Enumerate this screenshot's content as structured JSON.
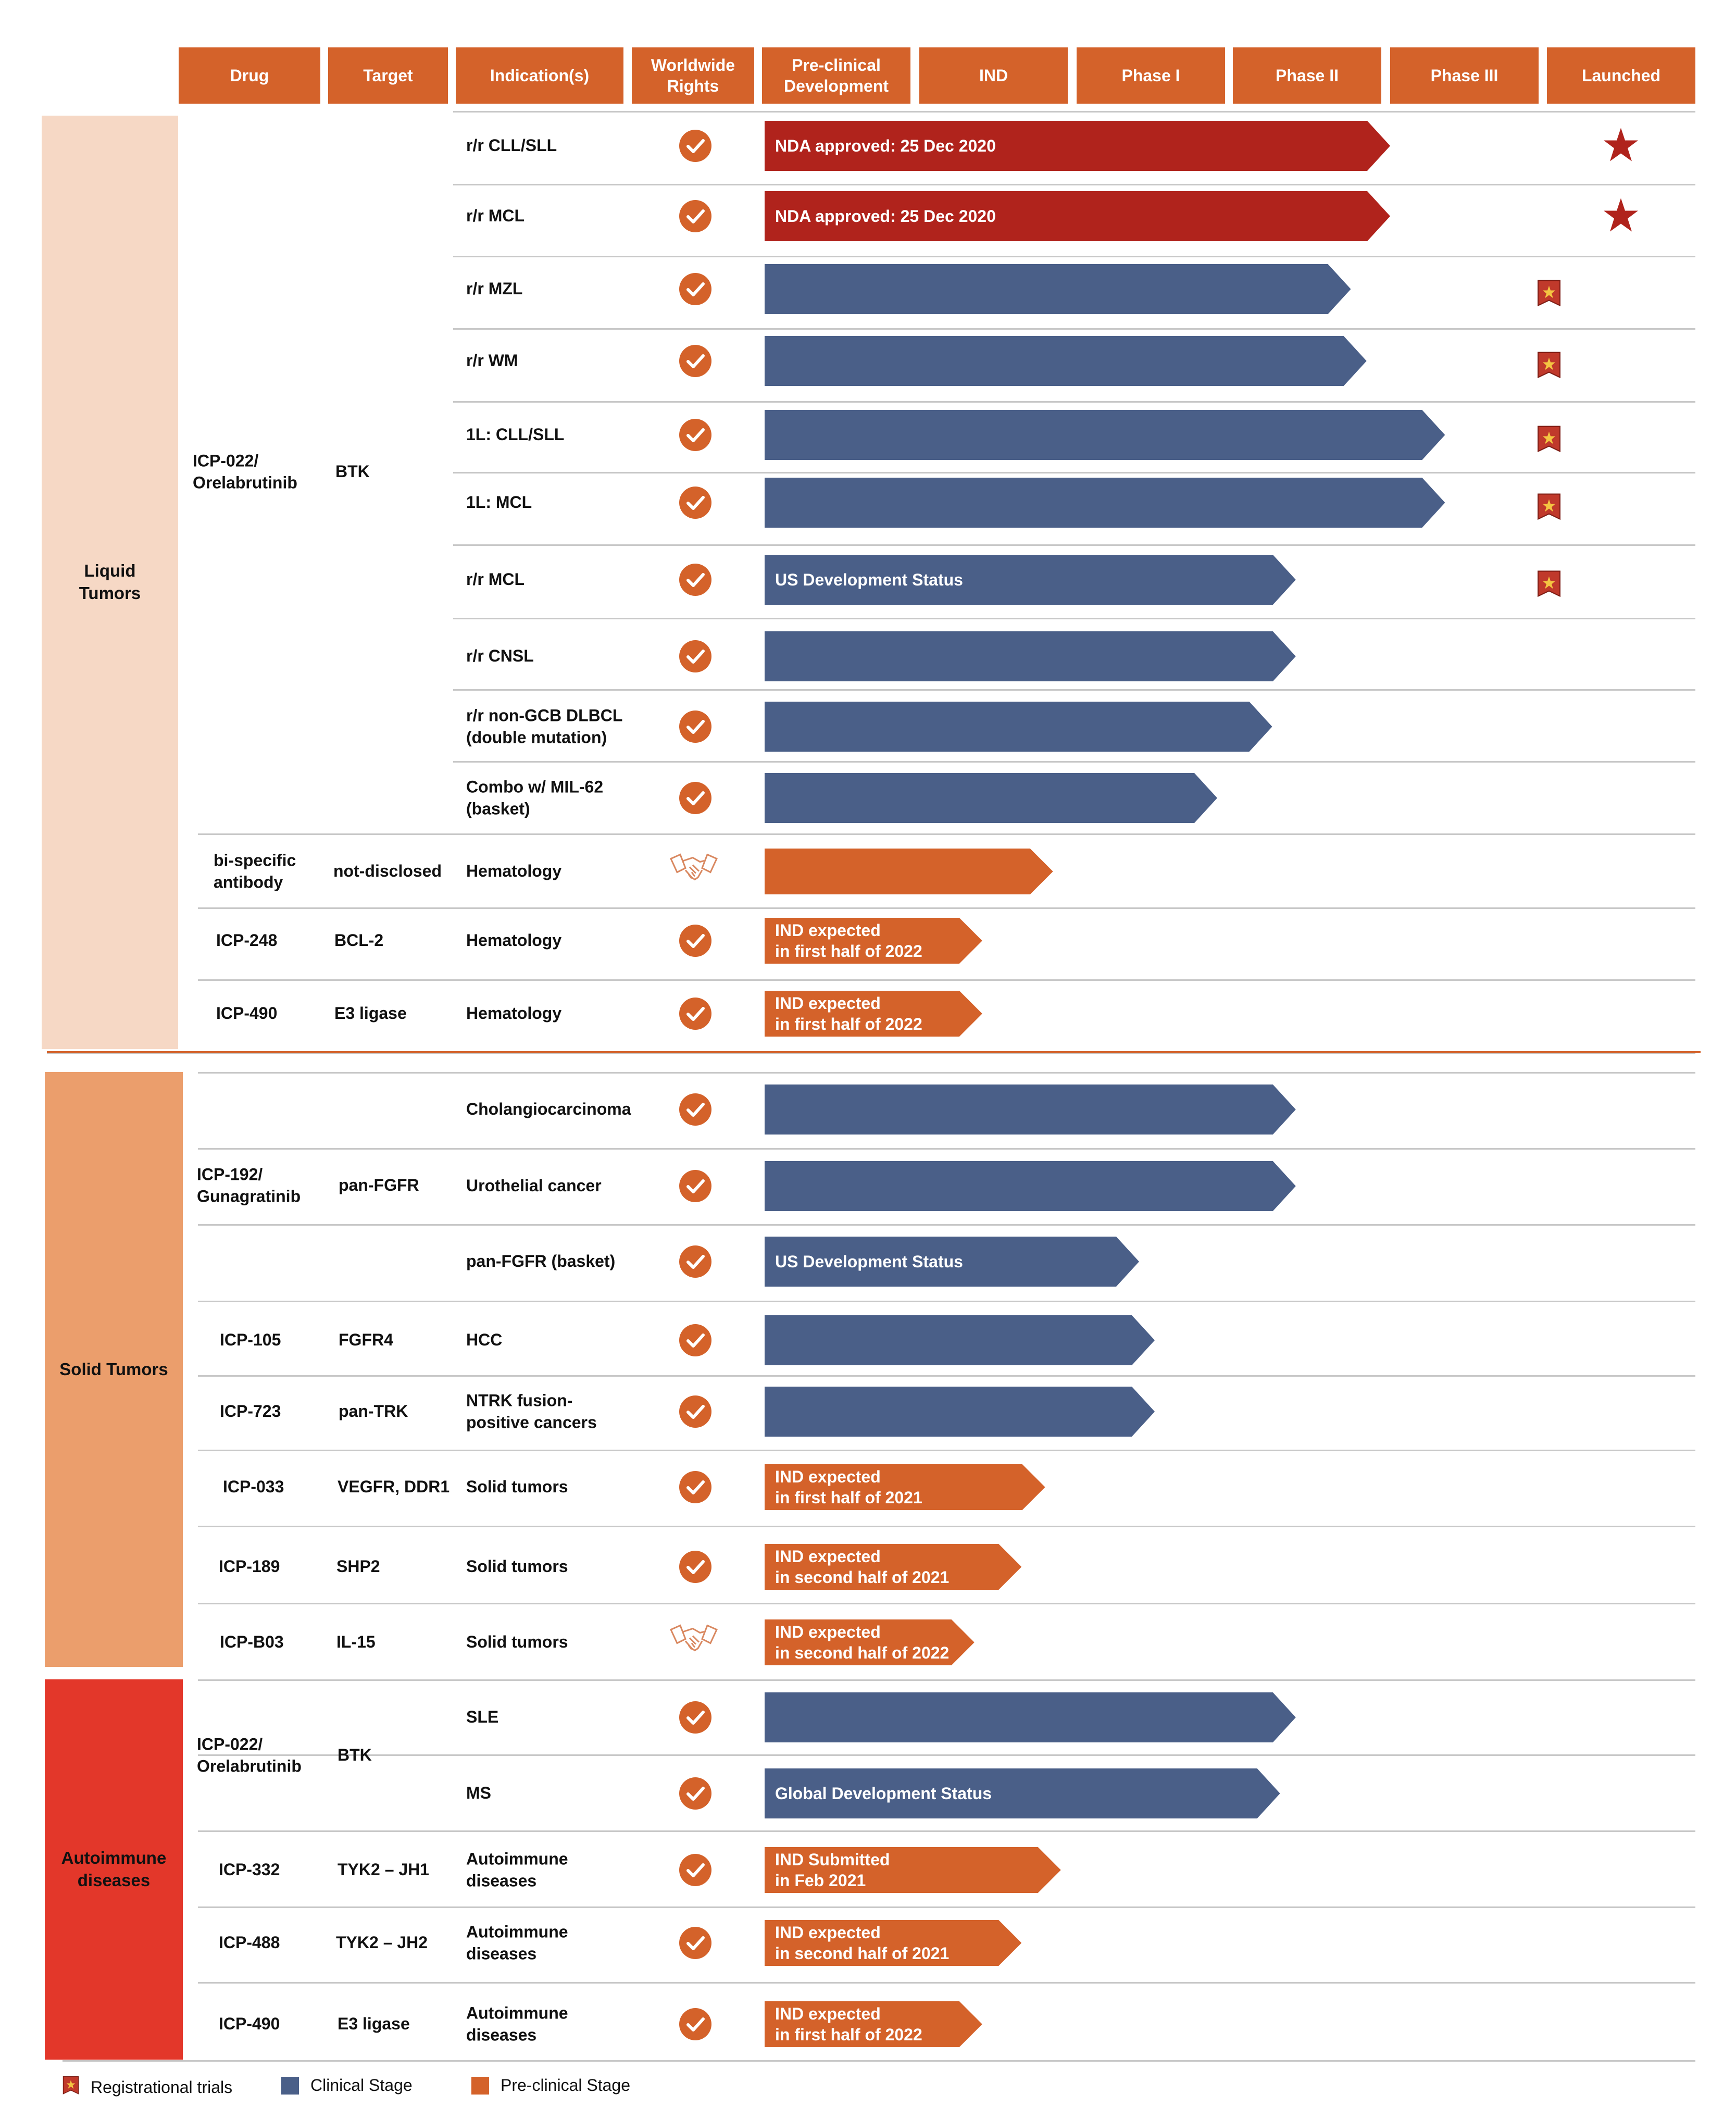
{
  "colors": {
    "header": "#d4622a",
    "liquid_band": "#f6d8c5",
    "solid_band": "#eb9e6c",
    "autoimmune_band": "#e3372a",
    "approved": "#b0231c",
    "clinical": "#4a5f88",
    "preclinical": "#d4622a",
    "check": "#d4622a"
  },
  "columns": [
    "Drug",
    "Target",
    "Indication(s)",
    "Worldwide\nRights",
    "Pre-clinical\nDevelopment",
    "IND",
    "Phase I",
    "Phase II",
    "Phase III",
    "Launched"
  ],
  "groups": [
    {
      "label": "Liquid\nTumors"
    },
    {
      "label": "Solid Tumors"
    },
    {
      "label": "Autoimmune\ndiseases"
    }
  ],
  "legend": [
    {
      "label": "Registrational trials",
      "icon": "registrational-badge-icon"
    },
    {
      "label": "Clinical Stage",
      "color": "#4a5f88"
    },
    {
      "label": "Pre-clinical Stage",
      "color": "#d4622a"
    }
  ],
  "chart_data": {
    "type": "table",
    "stages": [
      "Pre-clinical Development",
      "IND",
      "Phase I",
      "Phase II",
      "Phase III",
      "Launched"
    ],
    "programs": [
      {
        "group": "Liquid Tumors",
        "drug": "ICP-022/\nOrelabrutinib",
        "target": "BTK",
        "rights": "check",
        "rows": [
          {
            "indication": "r/r CLL/SLL",
            "status": "approved",
            "progress": 4.0,
            "label": "NDA approved: 25 Dec 2020",
            "launched": true,
            "registrational": false
          },
          {
            "indication": "r/r MCL",
            "status": "approved",
            "progress": 4.0,
            "label": "NDA approved: 25 Dec 2020",
            "launched": true,
            "registrational": false
          },
          {
            "indication": "r/r MZL",
            "status": "clinical",
            "progress": 3.75,
            "label": "",
            "launched": false,
            "registrational": true
          },
          {
            "indication": "r/r WM",
            "status": "clinical",
            "progress": 3.85,
            "label": "",
            "launched": false,
            "registrational": true
          },
          {
            "indication": "1L: CLL/SLL",
            "status": "clinical",
            "progress": 4.35,
            "label": "",
            "launched": false,
            "registrational": true
          },
          {
            "indication": "1L: MCL",
            "status": "clinical",
            "progress": 4.35,
            "label": "",
            "launched": false,
            "registrational": true
          },
          {
            "indication": "r/r MCL",
            "status": "clinical",
            "progress": 3.4,
            "label": "US Development Status",
            "launched": false,
            "registrational": true
          },
          {
            "indication": "r/r CNSL",
            "status": "clinical",
            "progress": 3.4,
            "label": "",
            "launched": false,
            "registrational": false
          },
          {
            "indication": "r/r non-GCB DLBCL\n(double mutation)",
            "status": "clinical",
            "progress": 3.25,
            "label": "",
            "launched": false,
            "registrational": false
          },
          {
            "indication": "Combo w/ MIL-62\n(basket)",
            "status": "clinical",
            "progress": 2.9,
            "label": "",
            "launched": false,
            "registrational": false
          }
        ]
      },
      {
        "group": "Liquid Tumors",
        "drug": "bi-specific\nantibody",
        "target": "not-disclosed",
        "rights": "partnership",
        "rows": [
          {
            "indication": "Hematology",
            "status": "preclinical",
            "progress": 1.85,
            "label": ""
          }
        ]
      },
      {
        "group": "Liquid Tumors",
        "drug": "ICP-248",
        "target": "BCL-2",
        "rights": "check",
        "rows": [
          {
            "indication": "Hematology",
            "status": "preclinical",
            "progress": 1.4,
            "label": "IND expected\nin first half of 2022"
          }
        ]
      },
      {
        "group": "Liquid Tumors",
        "drug": "ICP-490",
        "target": "E3 ligase",
        "rights": "check",
        "rows": [
          {
            "indication": "Hematology",
            "status": "preclinical",
            "progress": 1.4,
            "label": "IND expected\nin first half of 2022"
          }
        ]
      },
      {
        "group": "Solid Tumors",
        "drug": "ICP-192/\nGunagratinib",
        "target": "pan-FGFR",
        "rights": "check",
        "rows": [
          {
            "indication": "Cholangiocarcinoma",
            "status": "clinical",
            "progress": 3.4,
            "label": ""
          },
          {
            "indication": "Urothelial cancer",
            "status": "clinical",
            "progress": 3.4,
            "label": ""
          },
          {
            "indication": "pan-FGFR (basket)",
            "status": "clinical",
            "progress": 2.4,
            "label": "US Development Status"
          }
        ]
      },
      {
        "group": "Solid Tumors",
        "drug": "ICP-105",
        "target": "FGFR4",
        "rights": "check",
        "rows": [
          {
            "indication": "HCC",
            "status": "clinical",
            "progress": 2.5,
            "label": ""
          }
        ]
      },
      {
        "group": "Solid Tumors",
        "drug": "ICP-723",
        "target": "pan-TRK",
        "rights": "check",
        "rows": [
          {
            "indication": "NTRK fusion-\npositive cancers",
            "status": "clinical",
            "progress": 2.5,
            "label": ""
          }
        ]
      },
      {
        "group": "Solid Tumors",
        "drug": "ICP-033",
        "target": "VEGFR, DDR1",
        "rights": "check",
        "rows": [
          {
            "indication": "Solid tumors",
            "status": "preclinical",
            "progress": 1.8,
            "label": "IND expected\nin first half of 2021"
          }
        ]
      },
      {
        "group": "Solid Tumors",
        "drug": "ICP-189",
        "target": "SHP2",
        "rights": "check",
        "rows": [
          {
            "indication": "Solid tumors",
            "status": "preclinical",
            "progress": 1.65,
            "label": "IND expected\nin second half of 2021"
          }
        ]
      },
      {
        "group": "Solid Tumors",
        "drug": "ICP-B03",
        "target": "IL-15",
        "rights": "partnership",
        "rows": [
          {
            "indication": "Solid tumors",
            "status": "preclinical",
            "progress": 1.35,
            "label": "IND expected\nin second half of 2022"
          }
        ]
      },
      {
        "group": "Autoimmune diseases",
        "drug": "ICP-022/\nOrelabrutinib",
        "target": "BTK",
        "rights": "check",
        "rows": [
          {
            "indication": "SLE",
            "status": "clinical",
            "progress": 3.4,
            "label": ""
          },
          {
            "indication": "MS",
            "status": "clinical",
            "progress": 3.3,
            "label": "Global Development Status"
          }
        ]
      },
      {
        "group": "Autoimmune diseases",
        "drug": "ICP-332",
        "target": "TYK2 – JH1",
        "rights": "check",
        "rows": [
          {
            "indication": "Autoimmune\ndiseases",
            "status": "preclinical",
            "progress": 1.9,
            "label": "IND Submitted\nin Feb 2021"
          }
        ]
      },
      {
        "group": "Autoimmune diseases",
        "drug": "ICP-488",
        "target": "TYK2 – JH2",
        "rights": "check",
        "rows": [
          {
            "indication": "Autoimmune\ndiseases",
            "status": "preclinical",
            "progress": 1.65,
            "label": "IND expected\nin second half of 2021"
          }
        ]
      },
      {
        "group": "Autoimmune diseases",
        "drug": "ICP-490",
        "target": "E3 ligase",
        "rights": "check",
        "rows": [
          {
            "indication": "Autoimmune\ndiseases",
            "status": "preclinical",
            "progress": 1.4,
            "label": "IND expected\nin first half of 2022"
          }
        ]
      }
    ]
  }
}
